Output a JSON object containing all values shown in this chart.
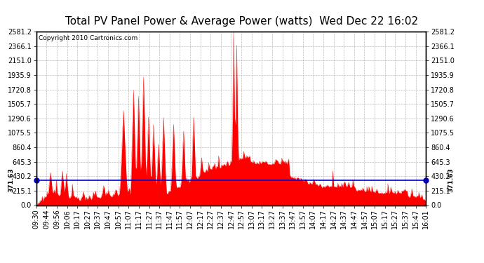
{
  "title": "Total PV Panel Power & Average Power (watts)  Wed Dec 22 16:02",
  "copyright": "Copyright 2010 Cartronics.com",
  "average_value": 371.63,
  "y_max": 2581.2,
  "y_ticks": [
    0.0,
    215.1,
    430.2,
    645.3,
    860.4,
    1075.5,
    1290.6,
    1505.7,
    1720.8,
    1935.9,
    2151.0,
    2366.1,
    2581.2
  ],
  "x_tick_labels": [
    "09:30",
    "09:44",
    "09:56",
    "10:06",
    "10:17",
    "10:27",
    "10:37",
    "10:47",
    "10:57",
    "11:07",
    "11:17",
    "11:27",
    "11:37",
    "11:47",
    "11:57",
    "12:07",
    "12:17",
    "12:27",
    "12:37",
    "12:47",
    "12:57",
    "13:07",
    "13:17",
    "13:27",
    "13:37",
    "13:47",
    "13:57",
    "14:07",
    "14:17",
    "14:27",
    "14:37",
    "14:47",
    "14:57",
    "15:07",
    "15:17",
    "15:27",
    "15:37",
    "15:47",
    "16:01"
  ],
  "background_color": "#ffffff",
  "plot_bg_color": "#ffffff",
  "grid_color": "#bbbbbb",
  "fill_color": "#ff0000",
  "line_color": "#ff0000",
  "avg_line_color": "#0000cc",
  "title_fontsize": 11,
  "tick_fontsize": 7,
  "copyright_fontsize": 6.5
}
